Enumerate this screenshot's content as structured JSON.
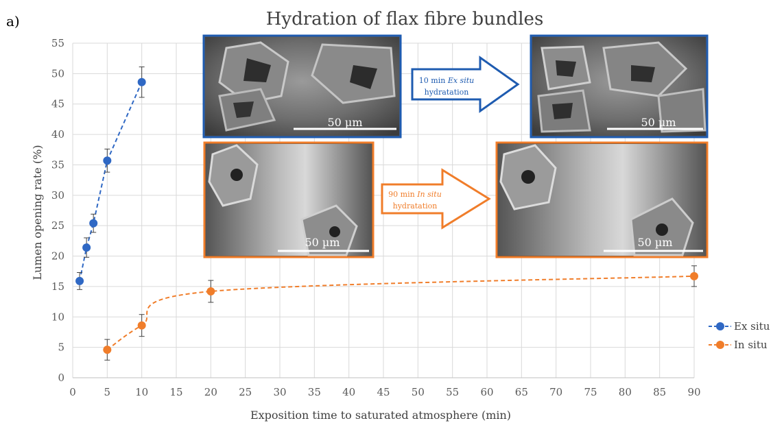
{
  "panel_label": "a)",
  "chart_data": {
    "type": "scatter",
    "title": "Hydration of flax fibre bundles",
    "xlabel": "Exposition time to saturated atmosphere (min)",
    "ylabel": "Lumen opening rate (%)",
    "xlim": [
      0,
      90
    ],
    "ylim": [
      0,
      55
    ],
    "xticks": [
      0,
      5,
      10,
      15,
      20,
      25,
      30,
      35,
      40,
      45,
      50,
      55,
      60,
      65,
      70,
      75,
      80,
      85,
      90
    ],
    "yticks": [
      0,
      5,
      10,
      15,
      20,
      25,
      30,
      35,
      40,
      45,
      50,
      55
    ],
    "grid": true,
    "legend_position": "right",
    "series": [
      {
        "name": "Ex situ",
        "color": "#2F68C4",
        "line_style": "dashed",
        "x": [
          1,
          2,
          3,
          5,
          10
        ],
        "y": [
          15.9,
          21.4,
          25.4,
          35.7,
          48.6
        ],
        "error": [
          1.4,
          1.6,
          1.5,
          1.9,
          2.5
        ]
      },
      {
        "name": "In situ",
        "color": "#F07D2A",
        "line_style": "dashed",
        "x": [
          5,
          10,
          20,
          90
        ],
        "y": [
          4.6,
          8.6,
          14.2,
          16.7
        ],
        "error": [
          1.7,
          1.8,
          1.8,
          1.7
        ]
      }
    ]
  },
  "insets": {
    "ex_situ_before": {
      "scale_label": "50 µm",
      "border_color": "#1E5BB0"
    },
    "ex_situ_after": {
      "scale_label": "50 µm",
      "border_color": "#1E5BB0"
    },
    "in_situ_before": {
      "scale_label": "50 µm",
      "border_color": "#F07D2A"
    },
    "in_situ_after": {
      "scale_label": "50 µm",
      "border_color": "#F07D2A"
    },
    "ex_situ_arrow": {
      "line1_prefix": "10 min ",
      "line1_emph": "Ex situ",
      "line2": "hydratation",
      "color": "#1E5BB0"
    },
    "in_situ_arrow": {
      "line1_prefix": "90 min ",
      "line1_emph": "In situ",
      "line2": "hydratation",
      "color": "#F07D2A"
    }
  }
}
